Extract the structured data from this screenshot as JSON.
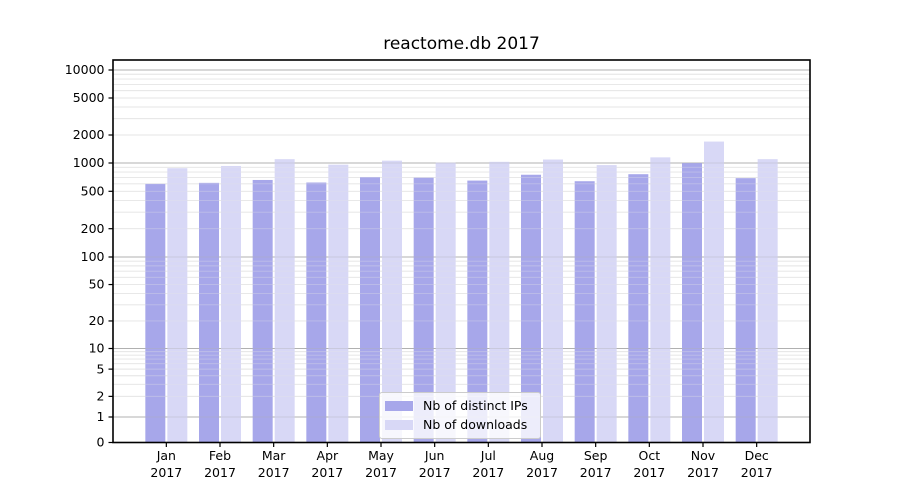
{
  "chart_data": {
    "type": "bar",
    "title": "reactome.db 2017",
    "categories": [
      "Jan 2017",
      "Feb 2017",
      "Mar 2017",
      "Apr 2017",
      "May 2017",
      "Jun 2017",
      "Jul 2017",
      "Aug 2017",
      "Sep 2017",
      "Oct 2017",
      "Nov 2017",
      "Dec 2017"
    ],
    "series": [
      {
        "name": "Nb of distinct IPs",
        "color": "#a7a7ea",
        "values": [
          600,
          615,
          660,
          620,
          710,
          700,
          650,
          750,
          640,
          760,
          1000,
          690
        ]
      },
      {
        "name": "Nb of downloads",
        "color": "#d8d8f6",
        "values": [
          880,
          930,
          1100,
          960,
          1060,
          1010,
          1030,
          1090,
          950,
          1150,
          1700,
          1100
        ]
      }
    ],
    "yticks": [
      0,
      1,
      2,
      5,
      10,
      20,
      50,
      100,
      200,
      500,
      1000,
      2000,
      5000,
      10000
    ],
    "ylim": [
      0,
      10000
    ],
    "yscale": "log-like with 0 baseline",
    "grid": "horizontal major and minor gridlines",
    "legend_position": "bottom-center"
  },
  "colors": {
    "background": "#ffffff",
    "axis": "#000000",
    "text": "#000000",
    "major_grid": "#b0b0b0",
    "minor_grid": "#e6e6e6"
  }
}
